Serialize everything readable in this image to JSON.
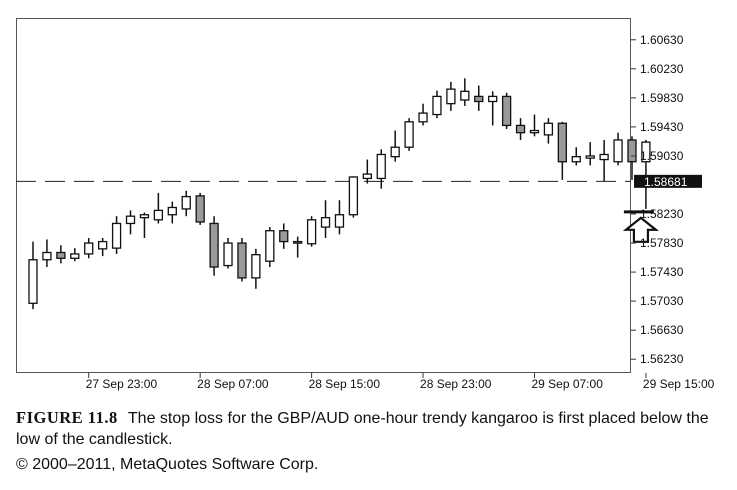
{
  "chart_data": {
    "type": "candlestick",
    "title": "",
    "xlabel": "",
    "ylabel": "",
    "ylim": [
      1.5604,
      1.6093
    ],
    "y_ticks": [
      "1.60630",
      "1.60230",
      "1.59830",
      "1.59430",
      "1.59030",
      "1.58230",
      "1.57830",
      "1.57430",
      "1.57030",
      "1.56630",
      "1.56230"
    ],
    "x_tick_labels": [
      {
        "label": "27 Sep 23:00",
        "index": 4
      },
      {
        "label": "28 Sep 07:00",
        "index": 12
      },
      {
        "label": "28 Sep 15:00",
        "index": 20
      },
      {
        "label": "28 Sep 23:00",
        "index": 28
      },
      {
        "label": "29 Sep 07:00",
        "index": 36
      },
      {
        "label": "29 Sep 15:00",
        "index": 44
      }
    ],
    "current_price_label": "1.58681",
    "horizontal_line": 1.5868,
    "stop_loss_level": 1.5826,
    "candles": [
      {
        "o": 1.57,
        "h": 1.5785,
        "l": 1.5692,
        "c": 1.576
      },
      {
        "o": 1.576,
        "h": 1.5788,
        "l": 1.575,
        "c": 1.577
      },
      {
        "o": 1.577,
        "h": 1.578,
        "l": 1.5755,
        "c": 1.5762
      },
      {
        "o": 1.5762,
        "h": 1.5776,
        "l": 1.5758,
        "c": 1.5768
      },
      {
        "o": 1.5768,
        "h": 1.579,
        "l": 1.5762,
        "c": 1.5783
      },
      {
        "o": 1.5775,
        "h": 1.579,
        "l": 1.5765,
        "c": 1.5785
      },
      {
        "o": 1.5776,
        "h": 1.582,
        "l": 1.5768,
        "c": 1.581
      },
      {
        "o": 1.581,
        "h": 1.5828,
        "l": 1.5795,
        "c": 1.582
      },
      {
        "o": 1.5818,
        "h": 1.5825,
        "l": 1.579,
        "c": 1.5822
      },
      {
        "o": 1.5815,
        "h": 1.5852,
        "l": 1.581,
        "c": 1.5828
      },
      {
        "o": 1.5822,
        "h": 1.584,
        "l": 1.581,
        "c": 1.5832
      },
      {
        "o": 1.583,
        "h": 1.5855,
        "l": 1.582,
        "c": 1.5847
      },
      {
        "o": 1.5848,
        "h": 1.5852,
        "l": 1.5808,
        "c": 1.5812
      },
      {
        "o": 1.581,
        "h": 1.582,
        "l": 1.5738,
        "c": 1.575
      },
      {
        "o": 1.5752,
        "h": 1.579,
        "l": 1.5748,
        "c": 1.5783
      },
      {
        "o": 1.5783,
        "h": 1.579,
        "l": 1.573,
        "c": 1.5735
      },
      {
        "o": 1.5735,
        "h": 1.5775,
        "l": 1.572,
        "c": 1.5767
      },
      {
        "o": 1.5758,
        "h": 1.5805,
        "l": 1.575,
        "c": 1.58
      },
      {
        "o": 1.58,
        "h": 1.581,
        "l": 1.5775,
        "c": 1.5785
      },
      {
        "o": 1.5785,
        "h": 1.5792,
        "l": 1.5763,
        "c": 1.5785
      },
      {
        "o": 1.5782,
        "h": 1.582,
        "l": 1.5778,
        "c": 1.5815
      },
      {
        "o": 1.5805,
        "h": 1.5842,
        "l": 1.579,
        "c": 1.5818
      },
      {
        "o": 1.5805,
        "h": 1.5842,
        "l": 1.5795,
        "c": 1.5822
      },
      {
        "o": 1.5822,
        "h": 1.5875,
        "l": 1.5818,
        "c": 1.5874
      },
      {
        "o": 1.5872,
        "h": 1.5898,
        "l": 1.5865,
        "c": 1.5878
      },
      {
        "o": 1.5872,
        "h": 1.5912,
        "l": 1.5858,
        "c": 1.5905
      },
      {
        "o": 1.5902,
        "h": 1.5938,
        "l": 1.5895,
        "c": 1.5915
      },
      {
        "o": 1.5915,
        "h": 1.5955,
        "l": 1.591,
        "c": 1.595
      },
      {
        "o": 1.595,
        "h": 1.5975,
        "l": 1.5945,
        "c": 1.5962
      },
      {
        "o": 1.596,
        "h": 1.5993,
        "l": 1.5955,
        "c": 1.5985
      },
      {
        "o": 1.5975,
        "h": 1.6005,
        "l": 1.5965,
        "c": 1.5995
      },
      {
        "o": 1.598,
        "h": 1.601,
        "l": 1.5972,
        "c": 1.5992
      },
      {
        "o": 1.5985,
        "h": 1.6,
        "l": 1.5965,
        "c": 1.5978
      },
      {
        "o": 1.5978,
        "h": 1.5992,
        "l": 1.5945,
        "c": 1.5985
      },
      {
        "o": 1.5985,
        "h": 1.599,
        "l": 1.594,
        "c": 1.5945
      },
      {
        "o": 1.5945,
        "h": 1.5955,
        "l": 1.5925,
        "c": 1.5935
      },
      {
        "o": 1.5935,
        "h": 1.596,
        "l": 1.593,
        "c": 1.5938
      },
      {
        "o": 1.5932,
        "h": 1.5955,
        "l": 1.592,
        "c": 1.5948
      },
      {
        "o": 1.5948,
        "h": 1.595,
        "l": 1.587,
        "c": 1.5895
      },
      {
        "o": 1.5895,
        "h": 1.5915,
        "l": 1.589,
        "c": 1.5902
      },
      {
        "o": 1.59,
        "h": 1.5922,
        "l": 1.589,
        "c": 1.5903
      },
      {
        "o": 1.5898,
        "h": 1.5925,
        "l": 1.5868,
        "c": 1.5905
      },
      {
        "o": 1.5895,
        "h": 1.5935,
        "l": 1.589,
        "c": 1.5925
      },
      {
        "o": 1.5925,
        "h": 1.593,
        "l": 1.587,
        "c": 1.5895
      },
      {
        "o": 1.5895,
        "h": 1.5925,
        "l": 1.583,
        "c": 1.5922
      }
    ]
  },
  "caption": {
    "label": "FIGURE 11.8",
    "text": "The stop loss for the GBP/AUD one-hour trendy kangaroo is first placed below the low of the candlestick.",
    "copyright": "© 2000–2011, MetaQuotes Software Corp."
  }
}
